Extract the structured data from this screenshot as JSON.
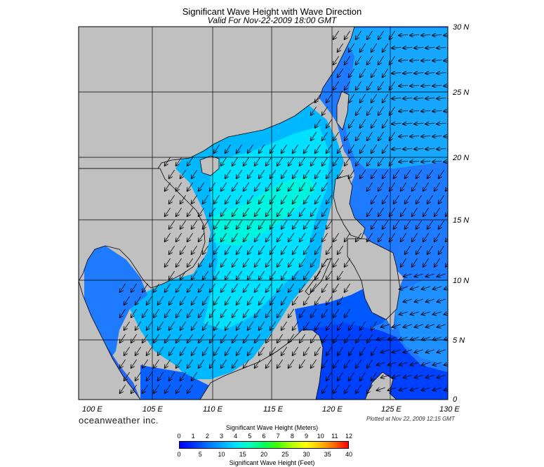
{
  "header": {
    "title": "Significant Wave Height with Wave Direction",
    "subtitle": "Valid For Nov-22-2009 18:00 GMT"
  },
  "map": {
    "lat_labels": [
      "30 N",
      "25 N",
      "20 N",
      "15 N",
      "10 N",
      "5 N",
      "0"
    ],
    "lon_labels": [
      "100 E",
      "105 E",
      "110 E",
      "115 E",
      "120 E",
      "125 E",
      "130 E"
    ],
    "lat_values": [
      30,
      25,
      20,
      15,
      10,
      5,
      0
    ],
    "lon_values": [
      100,
      105,
      110,
      115,
      120,
      125,
      130
    ],
    "land_color": "#c0c0c0",
    "dominant_wave_direction": "from northeast toward southwest"
  },
  "footer": {
    "brand": "oceanweather inc.",
    "plotted": "Plotted at Nov 22, 2009 12:15 GMT"
  },
  "colorbar": {
    "title_meters": "Significant Wave Height (Meters)",
    "title_feet": "Significant Wave Height (Feet)",
    "meter_ticks": [
      "0",
      "1",
      "2",
      "3",
      "4",
      "5",
      "6",
      "7",
      "8",
      "9",
      "10",
      "11",
      "12"
    ],
    "feet_ticks": [
      "0",
      "5",
      "10",
      "15",
      "20",
      "25",
      "30",
      "35",
      "40"
    ],
    "colors": [
      "#0000ff",
      "#00a8ff",
      "#00ffc0",
      "#40ff00",
      "#ffff00",
      "#ff7000",
      "#ff0000"
    ]
  }
}
